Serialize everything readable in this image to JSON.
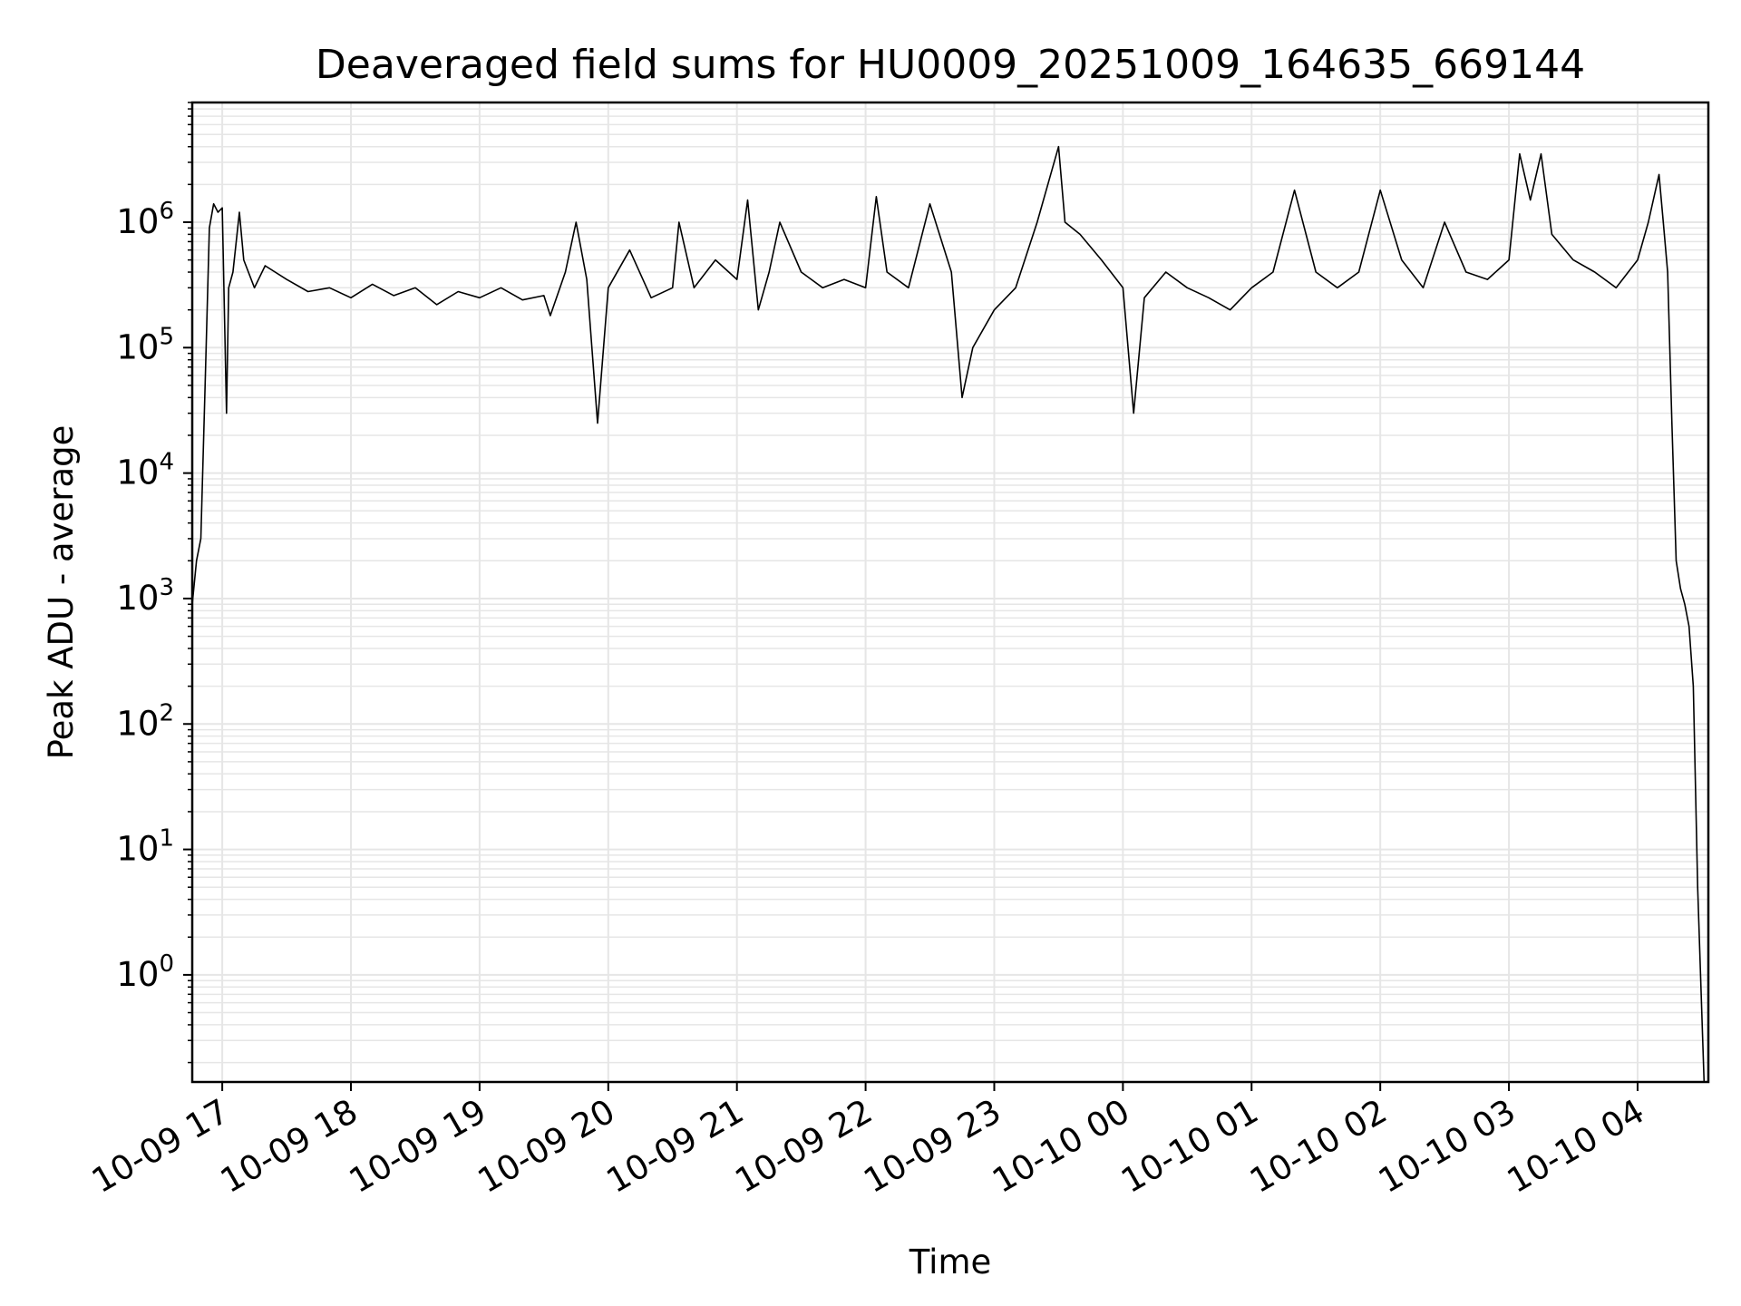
{
  "chart_data": {
    "type": "line",
    "title": "Deaveraged field sums for HU0009_20251009_164635_669144",
    "xlabel": "Time",
    "ylabel": "Peak ADU - average",
    "yscale": "log",
    "grid": true,
    "line_color": "#000000",
    "grid_color": "#e6e6e6",
    "xlim": [
      "2025-10-09 16:46",
      "2025-10-10 04:33"
    ],
    "ylim": [
      0.14,
      9000000
    ],
    "x_ticks": [
      {
        "value": "2025-10-09 17:00",
        "label": "10-09 17"
      },
      {
        "value": "2025-10-09 18:00",
        "label": "10-09 18"
      },
      {
        "value": "2025-10-09 19:00",
        "label": "10-09 19"
      },
      {
        "value": "2025-10-09 20:00",
        "label": "10-09 20"
      },
      {
        "value": "2025-10-09 21:00",
        "label": "10-09 21"
      },
      {
        "value": "2025-10-09 22:00",
        "label": "10-09 22"
      },
      {
        "value": "2025-10-09 23:00",
        "label": "10-09 23"
      },
      {
        "value": "2025-10-10 00:00",
        "label": "10-10 00"
      },
      {
        "value": "2025-10-10 01:00",
        "label": "10-10 01"
      },
      {
        "value": "2025-10-10 02:00",
        "label": "10-10 02"
      },
      {
        "value": "2025-10-10 03:00",
        "label": "10-10 03"
      },
      {
        "value": "2025-10-10 04:00",
        "label": "10-10 04"
      }
    ],
    "y_ticks": [
      {
        "value": 1,
        "base": "10",
        "exp": "0"
      },
      {
        "value": 10,
        "base": "10",
        "exp": "1"
      },
      {
        "value": 100,
        "base": "10",
        "exp": "2"
      },
      {
        "value": 1000,
        "base": "10",
        "exp": "3"
      },
      {
        "value": 10000,
        "base": "10",
        "exp": "4"
      },
      {
        "value": 100000,
        "base": "10",
        "exp": "5"
      },
      {
        "value": 1000000,
        "base": "10",
        "exp": "6"
      }
    ],
    "series": [
      {
        "x": [
          "2025-10-09 16:46",
          "2025-10-09 16:48",
          "2025-10-09 16:50",
          "2025-10-09 16:52",
          "2025-10-09 16:54",
          "2025-10-09 16:56",
          "2025-10-09 16:58",
          "2025-10-09 17:00",
          "2025-10-09 17:02",
          "2025-10-09 17:03",
          "2025-10-09 17:05",
          "2025-10-09 17:08",
          "2025-10-09 17:10",
          "2025-10-09 17:15",
          "2025-10-09 17:20",
          "2025-10-09 17:30",
          "2025-10-09 17:40",
          "2025-10-09 17:50",
          "2025-10-09 18:00",
          "2025-10-09 18:10",
          "2025-10-09 18:20",
          "2025-10-09 18:30",
          "2025-10-09 18:40",
          "2025-10-09 18:50",
          "2025-10-09 19:00",
          "2025-10-09 19:10",
          "2025-10-09 19:20",
          "2025-10-09 19:30",
          "2025-10-09 19:33",
          "2025-10-09 19:40",
          "2025-10-09 19:45",
          "2025-10-09 19:50",
          "2025-10-09 19:55",
          "2025-10-09 20:00",
          "2025-10-09 20:10",
          "2025-10-09 20:20",
          "2025-10-09 20:30",
          "2025-10-09 20:33",
          "2025-10-09 20:40",
          "2025-10-09 20:50",
          "2025-10-09 21:00",
          "2025-10-09 21:05",
          "2025-10-09 21:10",
          "2025-10-09 21:15",
          "2025-10-09 21:20",
          "2025-10-09 21:30",
          "2025-10-09 21:40",
          "2025-10-09 21:50",
          "2025-10-09 22:00",
          "2025-10-09 22:05",
          "2025-10-09 22:10",
          "2025-10-09 22:20",
          "2025-10-09 22:30",
          "2025-10-09 22:40",
          "2025-10-09 22:45",
          "2025-10-09 22:50",
          "2025-10-09 23:00",
          "2025-10-09 23:10",
          "2025-10-09 23:20",
          "2025-10-09 23:30",
          "2025-10-09 23:33",
          "2025-10-09 23:40",
          "2025-10-09 23:50",
          "2025-10-10 00:00",
          "2025-10-10 00:05",
          "2025-10-10 00:10",
          "2025-10-10 00:20",
          "2025-10-10 00:30",
          "2025-10-10 00:40",
          "2025-10-10 00:50",
          "2025-10-10 01:00",
          "2025-10-10 01:10",
          "2025-10-10 01:20",
          "2025-10-10 01:30",
          "2025-10-10 01:40",
          "2025-10-10 01:50",
          "2025-10-10 02:00",
          "2025-10-10 02:10",
          "2025-10-10 02:20",
          "2025-10-10 02:30",
          "2025-10-10 02:40",
          "2025-10-10 02:50",
          "2025-10-10 03:00",
          "2025-10-10 03:05",
          "2025-10-10 03:10",
          "2025-10-10 03:15",
          "2025-10-10 03:20",
          "2025-10-10 03:30",
          "2025-10-10 03:40",
          "2025-10-10 03:50",
          "2025-10-10 04:00",
          "2025-10-10 04:05",
          "2025-10-10 04:10",
          "2025-10-10 04:12",
          "2025-10-10 04:14",
          "2025-10-10 04:16",
          "2025-10-10 04:18",
          "2025-10-10 04:20",
          "2025-10-10 04:22",
          "2025-10-10 04:24",
          "2025-10-10 04:26",
          "2025-10-10 04:28",
          "2025-10-10 04:31"
        ],
        "y": [
          900,
          2000,
          3000,
          50000,
          900000,
          1400000,
          1200000,
          1300000,
          30000,
          300000,
          400000,
          1200000,
          500000,
          300000,
          450000,
          350000,
          280000,
          300000,
          250000,
          320000,
          260000,
          300000,
          220000,
          280000,
          250000,
          300000,
          240000,
          260000,
          180000,
          400000,
          1000000,
          350000,
          25000,
          300000,
          600000,
          250000,
          300000,
          1000000,
          300000,
          500000,
          350000,
          1500000,
          200000,
          400000,
          1000000,
          400000,
          300000,
          350000,
          300000,
          1600000,
          400000,
          300000,
          1400000,
          400000,
          40000,
          100000,
          200000,
          300000,
          1000000,
          4000000,
          1000000,
          800000,
          500000,
          300000,
          30000,
          250000,
          400000,
          300000,
          250000,
          200000,
          300000,
          400000,
          1800000,
          400000,
          300000,
          400000,
          1800000,
          500000,
          300000,
          1000000,
          400000,
          350000,
          500000,
          3500000,
          1500000,
          3500000,
          800000,
          500000,
          400000,
          300000,
          500000,
          1000000,
          2400000,
          1000000,
          400000,
          25000,
          2000,
          1200,
          900,
          600,
          200,
          5,
          0.14
        ]
      }
    ]
  }
}
